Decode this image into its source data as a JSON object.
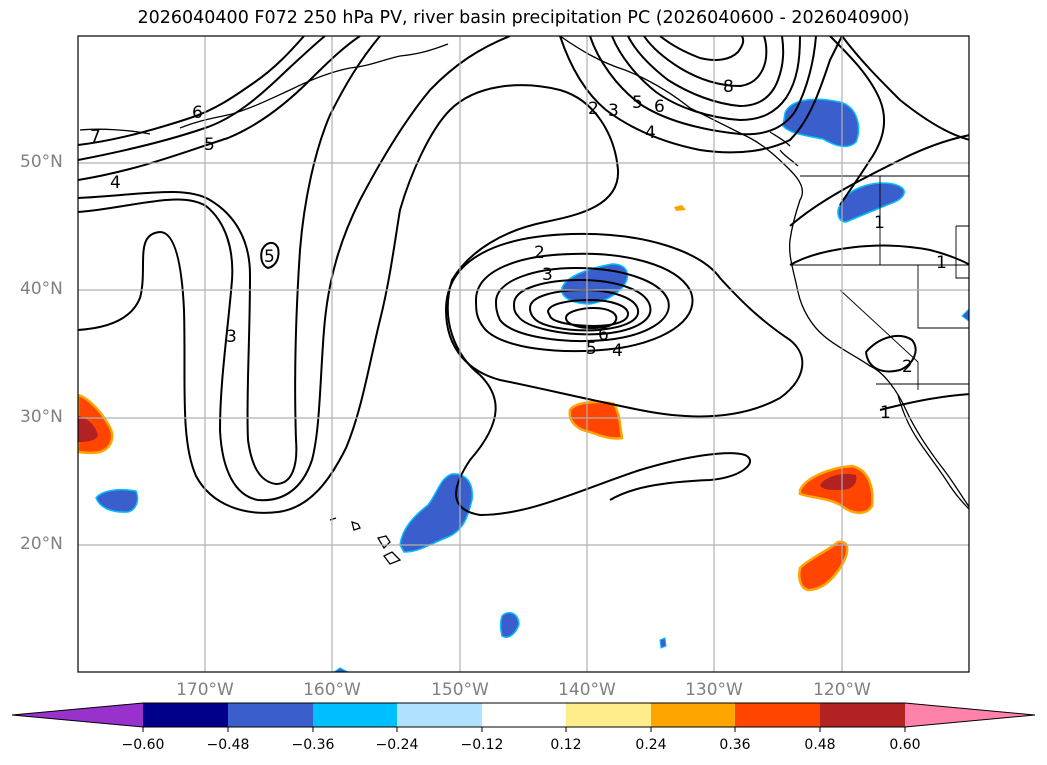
{
  "title": "2026040400 F072 250 hPa PV, river basin precipitation PC (2026040600 - 2026040900)",
  "lat_labels": [
    "50°N",
    "40°N",
    "30°N",
    "20°N"
  ],
  "lon_labels": [
    "170°W",
    "160°W",
    "150°W",
    "140°W",
    "130°W",
    "120°W"
  ],
  "colorbar": {
    "ticks": [
      "−0.60",
      "−0.48",
      "−0.36",
      "−0.24",
      "−0.12",
      "0.12",
      "0.24",
      "0.36",
      "0.48",
      "0.60"
    ],
    "colors": [
      "#9932cc",
      "#00008b",
      "#3a5fcd",
      "#00bfff",
      "#b0e2ff",
      "#ffffff",
      "#ffec8b",
      "#ffa500",
      "#ff4500",
      "#b22222",
      "#ff82ab"
    ]
  },
  "contour_labels": [
    "7",
    "6",
    "5",
    "4",
    "5",
    "3",
    "2",
    "3",
    "5",
    "6",
    "4",
    "8",
    "2",
    "3",
    "6",
    "5",
    "4",
    "1",
    "1",
    "1",
    "2"
  ],
  "colors": {
    "contour": "#000000",
    "grid": "#b0b0b0",
    "coast": "#000000"
  }
}
